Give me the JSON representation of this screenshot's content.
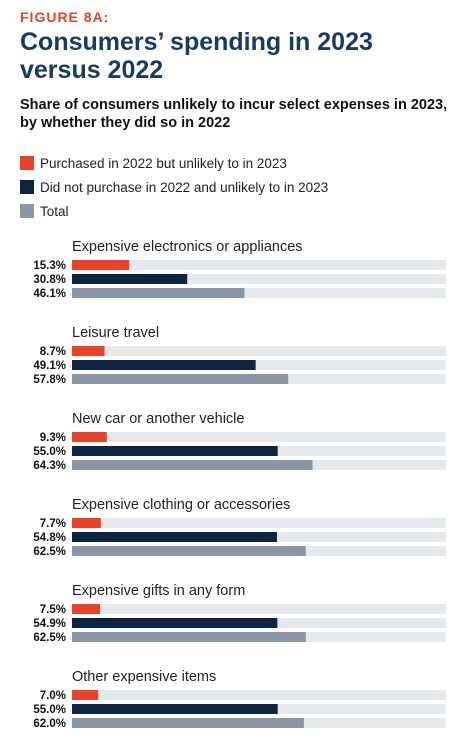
{
  "figure_label": "FIGURE 8A:",
  "title": "Consumers’ spending in 2023 versus 2022",
  "subtitle": "Share of consumers unlikely to incur select expenses in 2023, by whether they did so in 2022",
  "colors": {
    "purchased": "#e8412c",
    "not_purchased": "#0f2440",
    "total": "#8a96a6",
    "track": "#e6e8ec"
  },
  "chart_data": {
    "type": "bar",
    "orientation": "horizontal",
    "xlim": [
      0,
      100
    ],
    "value_suffix": "%",
    "legend_position": "top",
    "series": [
      {
        "name": "Purchased in 2022 but unlikely to in 2023",
        "color_key": "purchased"
      },
      {
        "name": "Did not purchase in 2022 and unlikely to in 2023",
        "color_key": "not_purchased"
      },
      {
        "name": "Total",
        "color_key": "total"
      }
    ],
    "categories": [
      {
        "label": "Expensive electronics or appliances",
        "values": [
          15.3,
          30.8,
          46.1
        ]
      },
      {
        "label": "Leisure travel",
        "values": [
          8.7,
          49.1,
          57.8
        ]
      },
      {
        "label": "New car or another vehicle",
        "values": [
          9.3,
          55.0,
          64.3
        ]
      },
      {
        "label": "Expensive clothing or accessories",
        "values": [
          7.7,
          54.8,
          62.5
        ]
      },
      {
        "label": "Expensive gifts in any form",
        "values": [
          7.5,
          54.9,
          62.5
        ]
      },
      {
        "label": "Other expensive items",
        "values": [
          7.0,
          55.0,
          62.0
        ]
      }
    ]
  }
}
